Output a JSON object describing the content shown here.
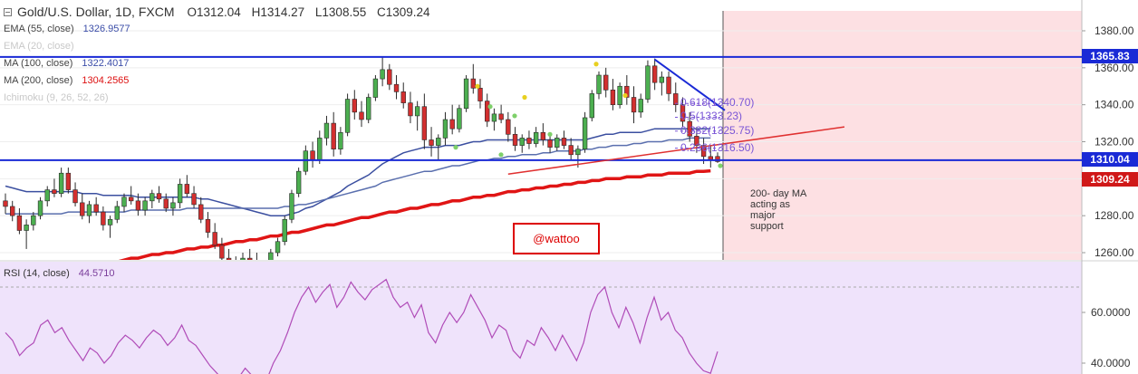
{
  "header": {
    "symbol_line": "Gold/U.S. Dollar, 1D, FXCM",
    "open": "O1312.04",
    "high": "H1314.27",
    "low": "L1308.55",
    "close": "C1309.24"
  },
  "indicators": [
    {
      "label": "EMA (55, close)",
      "value": "1326.9577",
      "color": "#3b4da8",
      "muted": false
    },
    {
      "label": "EMA (20, close)",
      "value": "",
      "color": "#c8c8c8",
      "muted": true
    },
    {
      "label": "MA (100, close)",
      "value": "1322.4017",
      "color": "#3b4da8",
      "muted": false
    },
    {
      "label": "MA (200, close)",
      "value": "1304.2565",
      "color": "#d11",
      "muted": false
    },
    {
      "label": "Ichimoku (9, 26, 52, 26)",
      "value": "",
      "color": "#c8c8c8",
      "muted": true
    }
  ],
  "rsi": {
    "label": "RSI (14, close)",
    "value": "44.5710"
  },
  "price_badges": {
    "resistance": "1365.83",
    "support": "1310.04",
    "last": "1309.24"
  },
  "fib_labels": [
    {
      "text": "0.618(1340.70)",
      "price": 1340.7
    },
    {
      "text": "0.5(1333.23)",
      "price": 1333.23
    },
    {
      "text": "0.382(1325.75)",
      "price": 1325.75
    },
    {
      "text": "0.236(1316.50)",
      "price": 1316.5
    }
  ],
  "annotation": [
    "200- day MA",
    "acting as",
    "major",
    "support"
  ],
  "watermark": "@wattoo",
  "colors": {
    "up": "#4caf50",
    "down": "#d32f2f",
    "hline": "#1a2ad6",
    "ma200": "#e01515",
    "ema55": "#3b4fa0",
    "ma100": "#5a6fae",
    "rsi_line": "#b04cb8",
    "rsi_bg": "#efe3fb",
    "future_bg": "#fde0e3"
  },
  "chart_data": [
    {
      "type": "candlestick",
      "title": "Gold/U.S. Dollar, 1D, FXCM",
      "ylim": [
        1255,
        1392
      ],
      "yticks": [
        1260,
        1280,
        1300,
        1320,
        1340,
        1360,
        1380
      ],
      "ytick_labels": [
        "1260.00",
        "1280.00",
        "1300.00",
        "1320.00",
        "1340.00",
        "1360.00",
        "1380.00"
      ],
      "ohlc": [
        [
          1288,
          1292,
          1281,
          1285
        ],
        [
          1285,
          1288,
          1277,
          1280
        ],
        [
          1280,
          1284,
          1270,
          1272
        ],
        [
          1272,
          1278,
          1262,
          1275
        ],
        [
          1275,
          1282,
          1272,
          1280
        ],
        [
          1280,
          1290,
          1278,
          1288
        ],
        [
          1288,
          1296,
          1285,
          1294
        ],
        [
          1294,
          1300,
          1290,
          1292
        ],
        [
          1292,
          1306,
          1290,
          1303
        ],
        [
          1303,
          1306,
          1292,
          1294
        ],
        [
          1294,
          1298,
          1285,
          1287
        ],
        [
          1287,
          1292,
          1278,
          1280
        ],
        [
          1280,
          1288,
          1276,
          1286
        ],
        [
          1286,
          1290,
          1280,
          1282
        ],
        [
          1282,
          1285,
          1272,
          1275
        ],
        [
          1275,
          1280,
          1268,
          1278
        ],
        [
          1278,
          1288,
          1276,
          1285
        ],
        [
          1285,
          1292,
          1282,
          1290
        ],
        [
          1290,
          1296,
          1286,
          1288
        ],
        [
          1288,
          1292,
          1280,
          1283
        ],
        [
          1283,
          1290,
          1280,
          1288
        ],
        [
          1288,
          1294,
          1284,
          1292
        ],
        [
          1292,
          1296,
          1287,
          1289
        ],
        [
          1289,
          1292,
          1282,
          1284
        ],
        [
          1284,
          1290,
          1280,
          1287
        ],
        [
          1287,
          1300,
          1284,
          1297
        ],
        [
          1297,
          1302,
          1290,
          1292
        ],
        [
          1292,
          1296,
          1284,
          1286
        ],
        [
          1286,
          1290,
          1276,
          1278
        ],
        [
          1278,
          1282,
          1268,
          1271
        ],
        [
          1271,
          1276,
          1262,
          1264
        ],
        [
          1264,
          1268,
          1254,
          1257
        ],
        [
          1257,
          1262,
          1250,
          1253
        ],
        [
          1253,
          1258,
          1248,
          1252
        ],
        [
          1252,
          1260,
          1250,
          1257
        ],
        [
          1257,
          1262,
          1252,
          1255
        ],
        [
          1255,
          1260,
          1250,
          1253
        ],
        [
          1253,
          1256,
          1248,
          1250
        ],
        [
          1250,
          1262,
          1249,
          1260
        ],
        [
          1260,
          1268,
          1258,
          1266
        ],
        [
          1266,
          1280,
          1264,
          1278
        ],
        [
          1278,
          1294,
          1276,
          1292
        ],
        [
          1292,
          1306,
          1290,
          1304
        ],
        [
          1304,
          1318,
          1302,
          1315
        ],
        [
          1315,
          1320,
          1306,
          1310
        ],
        [
          1310,
          1326,
          1308,
          1322
        ],
        [
          1322,
          1334,
          1318,
          1330
        ],
        [
          1330,
          1336,
          1312,
          1316
        ],
        [
          1316,
          1328,
          1313,
          1325
        ],
        [
          1325,
          1346,
          1323,
          1343
        ],
        [
          1343,
          1348,
          1332,
          1336
        ],
        [
          1336,
          1342,
          1328,
          1332
        ],
        [
          1332,
          1346,
          1330,
          1344
        ],
        [
          1344,
          1356,
          1342,
          1354
        ],
        [
          1354,
          1366,
          1350,
          1359
        ],
        [
          1359,
          1362,
          1348,
          1351
        ],
        [
          1351,
          1356,
          1343,
          1347
        ],
        [
          1347,
          1352,
          1338,
          1341
        ],
        [
          1341,
          1347,
          1330,
          1334
        ],
        [
          1334,
          1342,
          1326,
          1339
        ],
        [
          1339,
          1346,
          1316,
          1321
        ],
        [
          1321,
          1328,
          1312,
          1318
        ],
        [
          1318,
          1324,
          1310,
          1322
        ],
        [
          1322,
          1336,
          1318,
          1332
        ],
        [
          1332,
          1340,
          1324,
          1327
        ],
        [
          1327,
          1340,
          1325,
          1338
        ],
        [
          1338,
          1356,
          1336,
          1354
        ],
        [
          1354,
          1362,
          1346,
          1349
        ],
        [
          1349,
          1354,
          1338,
          1342
        ],
        [
          1342,
          1346,
          1328,
          1331
        ],
        [
          1331,
          1338,
          1326,
          1335
        ],
        [
          1335,
          1340,
          1330,
          1332
        ],
        [
          1332,
          1336,
          1320,
          1324
        ],
        [
          1324,
          1328,
          1315,
          1318
        ],
        [
          1318,
          1324,
          1314,
          1322
        ],
        [
          1322,
          1326,
          1316,
          1319
        ],
        [
          1319,
          1328,
          1317,
          1325
        ],
        [
          1325,
          1330,
          1318,
          1321
        ],
        [
          1321,
          1324,
          1314,
          1317
        ],
        [
          1317,
          1324,
          1315,
          1322
        ],
        [
          1322,
          1326,
          1316,
          1318
        ],
        [
          1318,
          1322,
          1310,
          1313
        ],
        [
          1313,
          1318,
          1306,
          1316
        ],
        [
          1316,
          1336,
          1314,
          1333
        ],
        [
          1333,
          1348,
          1331,
          1346
        ],
        [
          1346,
          1358,
          1343,
          1356
        ],
        [
          1356,
          1360,
          1344,
          1348
        ],
        [
          1348,
          1354,
          1337,
          1340
        ],
        [
          1340,
          1352,
          1338,
          1350
        ],
        [
          1350,
          1356,
          1340,
          1344
        ],
        [
          1344,
          1350,
          1330,
          1336
        ],
        [
          1336,
          1346,
          1333,
          1343
        ],
        [
          1343,
          1364,
          1341,
          1361
        ],
        [
          1361,
          1365,
          1348,
          1352
        ],
        [
          1352,
          1358,
          1345,
          1355
        ],
        [
          1355,
          1358,
          1342,
          1346
        ],
        [
          1346,
          1352,
          1336,
          1340
        ],
        [
          1340,
          1344,
          1328,
          1331
        ],
        [
          1331,
          1336,
          1320,
          1323
        ],
        [
          1323,
          1328,
          1314,
          1318
        ],
        [
          1318,
          1322,
          1308,
          1312
        ],
        [
          1312,
          1318,
          1306,
          1310
        ],
        [
          1312.04,
          1314.27,
          1308.55,
          1309.24
        ]
      ],
      "series": [
        {
          "name": "EMA (55, close)",
          "values": [
            1296,
            1295,
            1294,
            1293,
            1293,
            1293,
            1293,
            1293,
            1293,
            1293,
            1293,
            1292,
            1292,
            1292,
            1291,
            1291,
            1291,
            1291,
            1291,
            1290,
            1290,
            1290,
            1290,
            1290,
            1290,
            1290,
            1290,
            1290,
            1289,
            1289,
            1288,
            1287,
            1286,
            1285,
            1284,
            1283,
            1282,
            1281,
            1280,
            1280,
            1280,
            1281,
            1282,
            1284,
            1285,
            1287,
            1289,
            1291,
            1293,
            1296,
            1298,
            1300,
            1302,
            1305,
            1308,
            1310,
            1312,
            1314,
            1315,
            1316,
            1317,
            1317,
            1317,
            1318,
            1318,
            1318,
            1319,
            1320,
            1320,
            1321,
            1321,
            1321,
            1321,
            1321,
            1321,
            1321,
            1321,
            1321,
            1321,
            1321,
            1321,
            1321,
            1321,
            1321,
            1322,
            1323,
            1324,
            1324,
            1325,
            1325,
            1325,
            1325,
            1326,
            1327,
            1327,
            1327,
            1327,
            1327,
            1327,
            1327,
            1327,
            1327
          ]
        },
        {
          "name": "MA (100, close)",
          "values": [
            1281,
            1281,
            1281,
            1281,
            1281,
            1281,
            1281,
            1281,
            1281,
            1282,
            1282,
            1282,
            1282,
            1282,
            1282,
            1282,
            1282,
            1282,
            1283,
            1283,
            1283,
            1283,
            1283,
            1283,
            1283,
            1283,
            1284,
            1284,
            1284,
            1284,
            1284,
            1284,
            1284,
            1284,
            1284,
            1284,
            1284,
            1284,
            1284,
            1284,
            1285,
            1285,
            1286,
            1286,
            1287,
            1288,
            1289,
            1290,
            1291,
            1292,
            1293,
            1294,
            1295,
            1296,
            1298,
            1299,
            1300,
            1301,
            1302,
            1303,
            1304,
            1304,
            1305,
            1306,
            1307,
            1307,
            1308,
            1309,
            1310,
            1310,
            1311,
            1311,
            1312,
            1312,
            1313,
            1313,
            1313,
            1314,
            1314,
            1315,
            1315,
            1315,
            1315,
            1316,
            1316,
            1317,
            1317,
            1318,
            1318,
            1318,
            1319,
            1319,
            1320,
            1320,
            1320,
            1321,
            1321,
            1321,
            1322,
            1322,
            1322,
            1322
          ]
        },
        {
          "name": "MA (200, close)",
          "values": [
            1245,
            1246,
            1246,
            1247,
            1247,
            1248,
            1249,
            1249,
            1250,
            1251,
            1251,
            1252,
            1253,
            1253,
            1254,
            1255,
            1255,
            1256,
            1257,
            1257,
            1258,
            1259,
            1259,
            1260,
            1260,
            1261,
            1262,
            1262,
            1263,
            1263,
            1264,
            1264,
            1265,
            1266,
            1266,
            1267,
            1267,
            1268,
            1269,
            1269,
            1270,
            1271,
            1271,
            1272,
            1273,
            1274,
            1275,
            1275,
            1276,
            1277,
            1278,
            1279,
            1279,
            1280,
            1281,
            1282,
            1282,
            1283,
            1284,
            1284,
            1285,
            1286,
            1286,
            1287,
            1288,
            1288,
            1289,
            1290,
            1290,
            1291,
            1291,
            1292,
            1293,
            1293,
            1294,
            1294,
            1295,
            1295,
            1296,
            1296,
            1297,
            1297,
            1298,
            1298,
            1299,
            1299,
            1300,
            1300,
            1300,
            1301,
            1301,
            1301,
            1302,
            1302,
            1302,
            1303,
            1303,
            1303,
            1303,
            1304,
            1304,
            1304.2565
          ]
        }
      ],
      "horizontal_lines": [
        1365.83,
        1310.04
      ]
    },
    {
      "type": "line",
      "title": "RSI (14, close)",
      "ylim": [
        30,
        75
      ],
      "yticks": [
        40,
        60
      ],
      "ytick_labels": [
        "40.0000",
        "60.0000"
      ],
      "series": [
        {
          "name": "RSI (14, close)",
          "values": [
            52,
            49,
            43,
            46,
            48,
            55,
            57,
            52,
            54,
            49,
            45,
            41,
            46,
            44,
            40,
            43,
            48,
            51,
            49,
            46,
            50,
            53,
            51,
            47,
            50,
            55,
            49,
            47,
            43,
            39,
            36,
            33,
            32,
            34,
            38,
            35,
            34,
            33,
            40,
            45,
            52,
            60,
            66,
            70,
            64,
            68,
            71,
            62,
            66,
            72,
            68,
            65,
            69,
            71,
            73,
            66,
            62,
            64,
            58,
            63,
            52,
            48,
            55,
            60,
            56,
            60,
            67,
            62,
            57,
            50,
            55,
            53,
            45,
            42,
            49,
            47,
            54,
            50,
            45,
            51,
            46,
            41,
            48,
            60,
            67,
            70,
            60,
            54,
            62,
            56,
            48,
            58,
            66,
            57,
            60,
            53,
            50,
            44,
            40,
            37,
            36,
            44.571
          ]
        }
      ]
    }
  ]
}
